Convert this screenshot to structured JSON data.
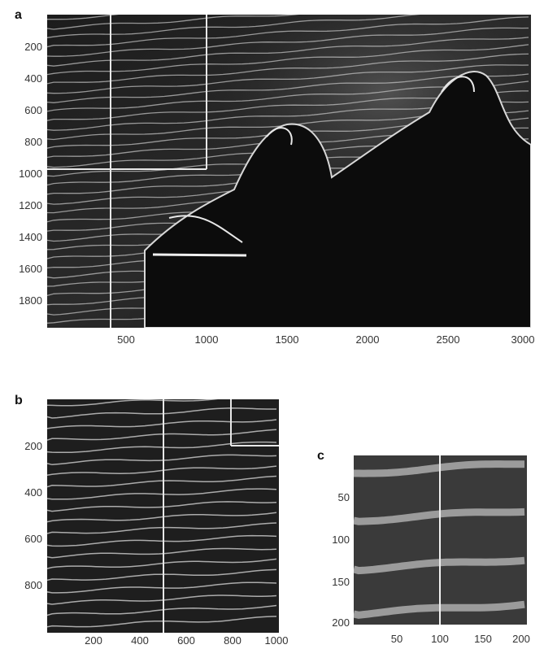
{
  "panels": [
    {
      "letter": "a",
      "y_ticks": [
        "200",
        "400",
        "600",
        "800",
        "1000",
        "1200",
        "1400",
        "1600",
        "1800"
      ],
      "x_ticks": [
        "500",
        "1000",
        "1500",
        "2000",
        "2500",
        "3000"
      ]
    },
    {
      "letter": "b",
      "y_ticks": [
        "200",
        "400",
        "600",
        "800"
      ],
      "x_ticks": [
        "200",
        "400",
        "600",
        "800",
        "1000"
      ]
    },
    {
      "letter": "c",
      "y_ticks": [
        "50",
        "100",
        "150",
        "200"
      ],
      "x_ticks": [
        "50",
        "100",
        "150",
        "200"
      ]
    }
  ]
}
